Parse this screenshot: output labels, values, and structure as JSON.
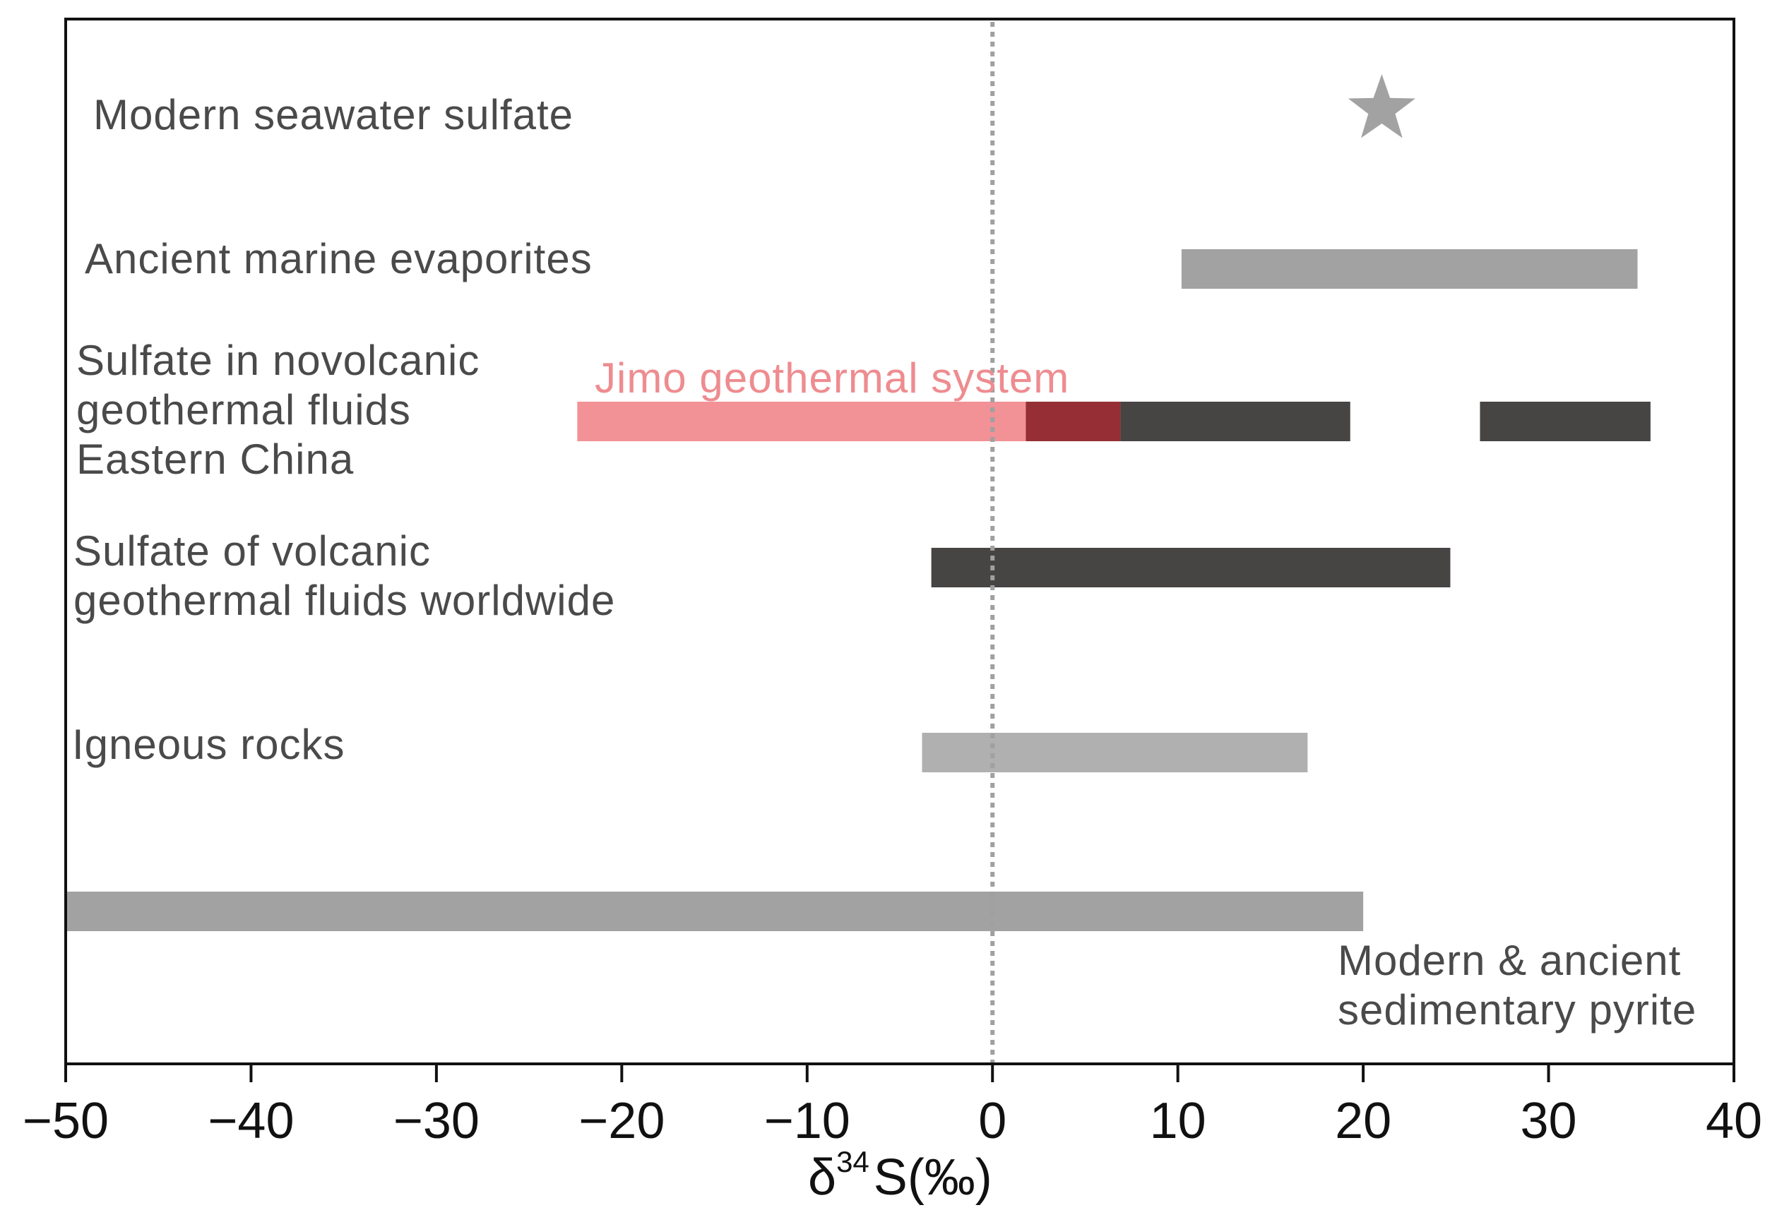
{
  "chart_data": {
    "type": "range-bar",
    "xlabel": {
      "prefix": "δ",
      "sup": "34",
      "suffix": "S(‰)"
    },
    "xlim": [
      -50,
      40
    ],
    "xticks": [
      -50,
      -40,
      -30,
      -20,
      -10,
      0,
      10,
      20,
      30,
      40
    ],
    "xtick_labels": [
      "−50",
      "−40",
      "−30",
      "−20",
      "−10",
      "0",
      "10",
      "20",
      "30",
      "40"
    ],
    "reference_line": {
      "x": 0,
      "style": "dotted"
    },
    "categories": [
      {
        "id": "seawater",
        "lines": [
          "Modern seawater sulfate"
        ]
      },
      {
        "id": "evaporites",
        "lines": [
          "Ancient marine evaporites"
        ]
      },
      {
        "id": "nonvolcanic",
        "lines": [
          "Sulfate in novolcanic",
          "geothermal fluids",
          "Eastern China"
        ]
      },
      {
        "id": "volcanic",
        "lines": [
          "Sulfate of volcanic",
          "geothermal fluids worldwide"
        ]
      },
      {
        "id": "igneous",
        "lines": [
          "Igneous rocks"
        ]
      },
      {
        "id": "pyrite",
        "lines": [
          "Modern & ancient",
          "sedimentary pyrite"
        ]
      }
    ],
    "ranges": [
      {
        "category": "evaporites",
        "from": 10.2,
        "to": 34.8,
        "color": "#a3a2a2"
      },
      {
        "category": "nonvolcanic",
        "from": 1.8,
        "to": 19.3,
        "color": "#474444"
      },
      {
        "category": "nonvolcanic",
        "from": 26.3,
        "to": 35.5,
        "color": "#474444"
      },
      {
        "category": "volcanic",
        "from": -3.3,
        "to": 24.7,
        "color": "#474444"
      },
      {
        "category": "igneous",
        "from": -3.8,
        "to": 17.0,
        "color": "#b0b0b0"
      },
      {
        "category": "pyrite",
        "from": -50,
        "to": 20.0,
        "color": "#a3a2a2"
      },
      {
        "category": "nonvolcanic",
        "from": -22.4,
        "to": 6.9,
        "color": "#f29196",
        "series": "jimo"
      }
    ],
    "overlap": {
      "category": "nonvolcanic",
      "from": 1.8,
      "to": 6.9,
      "color": "#952f35"
    },
    "points": [
      {
        "category": "seawater",
        "x": 21.0,
        "marker": "star",
        "color": "#a3a2a2"
      }
    ],
    "annotations": [
      {
        "text": "Jimo geothermal system",
        "color": "#ee8c90"
      }
    ]
  },
  "colors": {
    "frame": "#111111",
    "reference_line": "#a0a0a0"
  }
}
